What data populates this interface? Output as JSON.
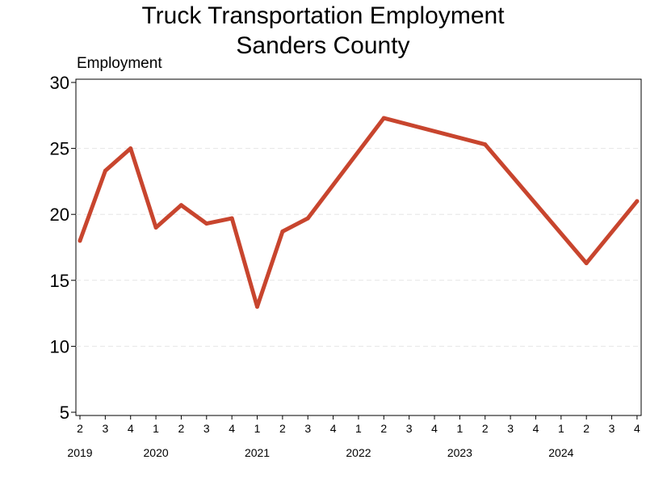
{
  "chart_data": {
    "type": "line",
    "title": "Truck Transportation Employment",
    "subtitle": "Sanders County",
    "ylabel": "Employment",
    "xlabel": "",
    "ylim": [
      5,
      30
    ],
    "yticks": [
      5,
      10,
      15,
      20,
      25,
      30
    ],
    "grid": true,
    "x": [
      "2019 Q2",
      "2019 Q3",
      "2019 Q4",
      "2020 Q1",
      "2020 Q2",
      "2020 Q3",
      "2020 Q4",
      "2021 Q1",
      "2021 Q2",
      "2021 Q3",
      "2021 Q4",
      "2022 Q1",
      "2022 Q2",
      "2022 Q3",
      "2022 Q4",
      "2023 Q1",
      "2023 Q2",
      "2023 Q3",
      "2023 Q4",
      "2024 Q1",
      "2024 Q2",
      "2024 Q3",
      "2024 Q4"
    ],
    "quarter_labels": [
      "2",
      "3",
      "4",
      "1",
      "2",
      "3",
      "4",
      "1",
      "2",
      "3",
      "4",
      "1",
      "2",
      "3",
      "4",
      "1",
      "2",
      "3",
      "4",
      "1",
      "2",
      "3",
      "4"
    ],
    "years": [
      {
        "label": "2019",
        "index": 0
      },
      {
        "label": "2020",
        "index": 3
      },
      {
        "label": "2021",
        "index": 7
      },
      {
        "label": "2022",
        "index": 11
      },
      {
        "label": "2023",
        "index": 15
      },
      {
        "label": "2024",
        "index": 19
      }
    ],
    "series": [
      {
        "color": "#c8452e",
        "values": [
          18,
          23.3,
          25,
          19,
          20.7,
          19.3,
          19.7,
          13,
          18.7,
          19.7,
          null,
          null,
          27.3,
          null,
          null,
          null,
          25.3,
          null,
          null,
          null,
          16.3,
          null,
          21
        ]
      }
    ]
  }
}
